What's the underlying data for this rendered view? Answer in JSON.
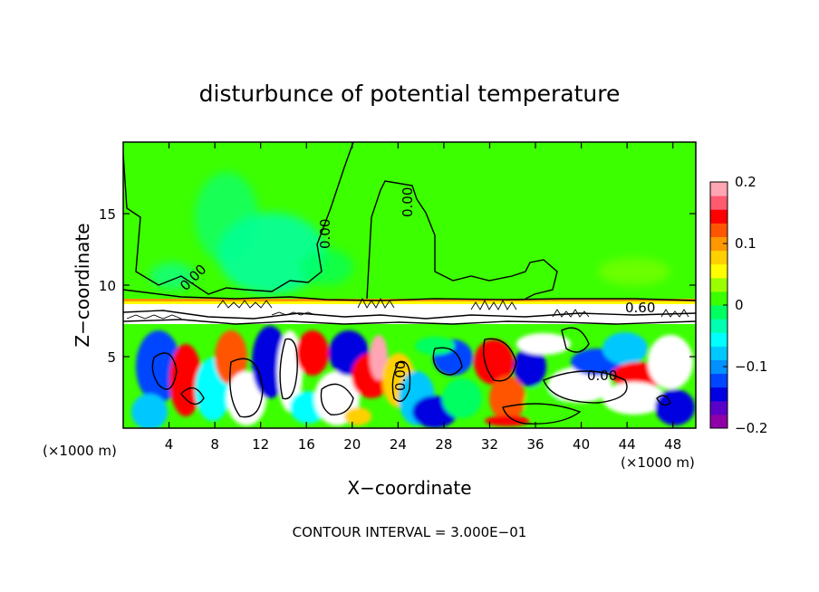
{
  "chart_data": {
    "type": "heatmap",
    "title": "disturbunce of potential temperature",
    "xlabel": "X−coordinate",
    "ylabel": "Z−coordinate",
    "x_unit_left": "(×1000 m)",
    "x_unit_right": "(×1000 m)",
    "xlim": [
      0,
      50
    ],
    "ylim": [
      0,
      20
    ],
    "x_ticks": [
      4,
      8,
      12,
      16,
      20,
      24,
      28,
      32,
      36,
      40,
      44,
      48
    ],
    "y_ticks": [
      5,
      10,
      15
    ],
    "colorbar": {
      "range": [
        -0.2,
        0.2
      ],
      "ticks": [
        "0.2",
        "0.1",
        "0",
        "−0.1",
        "−0.2"
      ],
      "tick_values": [
        0.2,
        0.1,
        0,
        -0.1,
        -0.2
      ],
      "colors": [
        "#8f00a8",
        "#5a00c8",
        "#0000e0",
        "#0045ff",
        "#0090ff",
        "#00c8ff",
        "#00ffff",
        "#00ffb0",
        "#00ff60",
        "#3cff00",
        "#9cff00",
        "#ffff00",
        "#ffd000",
        "#ff9800",
        "#ff5500",
        "#ff0000",
        "#ff5a70",
        "#ffa5b4"
      ]
    },
    "contour_labels": [
      "0.00",
      "0.00",
      "0.00",
      "0.00",
      "0.60",
      "0.00"
    ],
    "footer": "CONTOUR INTERVAL = 3.000E−01",
    "legend": "colorbar-right",
    "grid": false
  }
}
